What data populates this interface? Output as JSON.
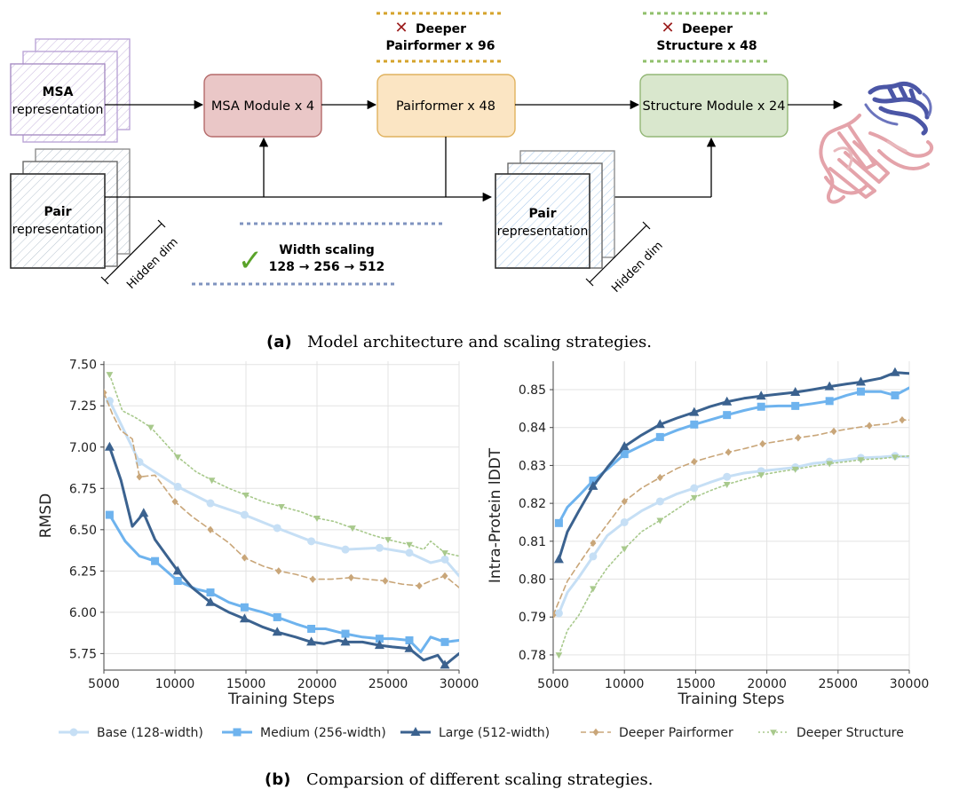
{
  "architecture": {
    "msa_repr": {
      "bold": "MSA",
      "label": "representation"
    },
    "pair_repr_left": {
      "bold": "Pair",
      "label": "representation"
    },
    "pair_repr_right": {
      "bold": "Pair",
      "label": "representation"
    },
    "hidden_dim_left": "Hidden dim",
    "hidden_dim_right": "Hidden dim",
    "msa_module": "MSA Module x 4",
    "pairformer": "Pairformer x 48",
    "structure_module": "Structure Module x 24",
    "deeper_pairformer": {
      "mark": "✕",
      "line1": "Deeper",
      "line2": "Pairformer x 96"
    },
    "deeper_structure": {
      "mark": "✕",
      "line1": "Deeper",
      "line2": "Structure x 48"
    },
    "width_scaling": {
      "mark": "✓",
      "line1": "Width scaling",
      "line2": "128 → 256 → 512"
    },
    "colors": {
      "msa_module_fill": "#eac7c7",
      "msa_module_stroke": "#b56a6a",
      "pairformer_fill": "#fbe5c3",
      "pairformer_stroke": "#e0b25e",
      "structure_fill": "#d9e7cd",
      "structure_stroke": "#93b776",
      "msa_repr_stroke": "#a58bc2",
      "pair_repr_stroke": "#333333"
    }
  },
  "caption_a": {
    "tag": "(a)",
    "text": "Model architecture and scaling strategies."
  },
  "caption_b": {
    "tag": "(b)",
    "text": "Comparsion of different scaling strategies."
  },
  "legend": [
    {
      "name": "Base (128-width)",
      "color": "#c6dff5",
      "marker": "circle",
      "dash": "solid"
    },
    {
      "name": "Medium (256-width)",
      "color": "#6eb3ee",
      "marker": "square",
      "dash": "solid"
    },
    {
      "name": "Large (512-width)",
      "color": "#3b628f",
      "marker": "triangle",
      "dash": "solid"
    },
    {
      "name": "Deeper Pairformer",
      "color": "#c9a679",
      "marker": "diamond",
      "dash": "dashed"
    },
    {
      "name": "Deeper Structure",
      "color": "#a8c98c",
      "marker": "tri-down",
      "dash": "dotted"
    }
  ],
  "chart_data": [
    {
      "type": "line",
      "title": "",
      "xlabel": "Training Steps",
      "ylabel": "RMSD",
      "xlim": [
        5000,
        30000
      ],
      "ylim": [
        5.65,
        7.52
      ],
      "xticks": [
        5000,
        10000,
        15000,
        20000,
        25000,
        30000
      ],
      "yticks": [
        5.75,
        6.0,
        6.25,
        6.5,
        6.75,
        7.0,
        7.25,
        7.5
      ],
      "ytick_labels": [
        "5.75",
        "6.00",
        "6.25",
        "6.50",
        "6.75",
        "7.00",
        "7.25",
        "7.50"
      ],
      "grid": true,
      "series": [
        {
          "name": "Base (128-width)",
          "x": [
            5400,
            7500,
            10200,
            12500,
            14900,
            17200,
            19600,
            22000,
            24400,
            26500,
            28000,
            29000,
            30000
          ],
          "y": [
            7.28,
            6.91,
            6.76,
            6.66,
            6.59,
            6.51,
            6.43,
            6.38,
            6.39,
            6.36,
            6.3,
            6.32,
            6.22
          ],
          "markers": [
            0,
            1,
            2,
            3,
            4,
            5,
            6,
            7,
            8,
            9,
            11
          ]
        },
        {
          "name": "Medium (256-width)",
          "x": [
            5400,
            6500,
            7500,
            8600,
            10200,
            11500,
            12500,
            13800,
            14900,
            16200,
            17200,
            18500,
            19600,
            20600,
            21500,
            22000,
            23200,
            24400,
            25300,
            26500,
            27300,
            28000,
            29000,
            30000
          ],
          "y": [
            6.59,
            6.43,
            6.34,
            6.31,
            6.19,
            6.14,
            6.12,
            6.06,
            6.03,
            6.0,
            5.97,
            5.93,
            5.9,
            5.9,
            5.88,
            5.87,
            5.85,
            5.84,
            5.84,
            5.83,
            5.76,
            5.85,
            5.82,
            5.83
          ],
          "markers": [
            0,
            3,
            4,
            6,
            8,
            10,
            12,
            15,
            17,
            19,
            22
          ]
        },
        {
          "name": "Large (512-width)",
          "x": [
            5400,
            6200,
            7000,
            7500,
            7800,
            8600,
            10200,
            11200,
            12500,
            13800,
            14900,
            16200,
            17200,
            18500,
            19600,
            20500,
            21500,
            22000,
            23200,
            24400,
            25300,
            26500,
            27500,
            28500,
            29000,
            30000
          ],
          "y": [
            7.0,
            6.8,
            6.52,
            6.57,
            6.6,
            6.44,
            6.25,
            6.15,
            6.06,
            6.0,
            5.96,
            5.91,
            5.88,
            5.85,
            5.82,
            5.81,
            5.83,
            5.82,
            5.82,
            5.8,
            5.79,
            5.78,
            5.71,
            5.74,
            5.68,
            5.75
          ],
          "markers": [
            0,
            4,
            6,
            8,
            10,
            12,
            14,
            17,
            19,
            21,
            24
          ]
        },
        {
          "name": "Deeper Pairformer",
          "x": [
            5000,
            5600,
            6200,
            7000,
            7500,
            8600,
            10000,
            11200,
            12500,
            13800,
            14900,
            16200,
            17300,
            18500,
            19700,
            21000,
            22400,
            23500,
            24800,
            26000,
            27200,
            28000,
            29000,
            30000
          ],
          "y": [
            7.33,
            7.2,
            7.1,
            7.05,
            6.82,
            6.83,
            6.67,
            6.58,
            6.5,
            6.42,
            6.33,
            6.28,
            6.25,
            6.23,
            6.2,
            6.2,
            6.21,
            6.2,
            6.19,
            6.17,
            6.16,
            6.19,
            6.22,
            6.15
          ],
          "markers": [
            0,
            4,
            6,
            8,
            10,
            12,
            14,
            16,
            18,
            20,
            22
          ]
        },
        {
          "name": "Deeper Structure",
          "x": [
            5400,
            6300,
            7200,
            8300,
            10200,
            11500,
            12600,
            13800,
            15000,
            16200,
            17500,
            18800,
            20000,
            21200,
            22500,
            23800,
            25000,
            26500,
            27500,
            28000,
            29000,
            30000
          ],
          "y": [
            7.44,
            7.22,
            7.18,
            7.12,
            6.94,
            6.85,
            6.8,
            6.75,
            6.71,
            6.67,
            6.64,
            6.61,
            6.57,
            6.55,
            6.51,
            6.47,
            6.44,
            6.41,
            6.38,
            6.43,
            6.36,
            6.34
          ],
          "markers": [
            0,
            3,
            4,
            6,
            8,
            10,
            12,
            14,
            16,
            17,
            20
          ]
        }
      ]
    },
    {
      "type": "line",
      "title": "",
      "xlabel": "Training Steps",
      "ylabel": "Intra-Protein lDDT",
      "xlim": [
        5000,
        30000
      ],
      "ylim": [
        0.776,
        0.8575
      ],
      "xticks": [
        5000,
        10000,
        15000,
        20000,
        25000,
        30000
      ],
      "yticks": [
        0.78,
        0.79,
        0.8,
        0.81,
        0.82,
        0.83,
        0.84,
        0.85
      ],
      "ytick_labels": [
        "0.78",
        "0.79",
        "0.80",
        "0.81",
        "0.82",
        "0.83",
        "0.84",
        "0.85"
      ],
      "grid": true,
      "series": [
        {
          "name": "Base (128-width)",
          "x": [
            5400,
            6000,
            6800,
            7800,
            8800,
            10000,
            11200,
            12500,
            13700,
            14900,
            16000,
            17200,
            18400,
            19600,
            20800,
            22000,
            23200,
            24400,
            25600,
            26600,
            28000,
            29000,
            30000
          ],
          "y": [
            0.791,
            0.7965,
            0.8005,
            0.806,
            0.8115,
            0.815,
            0.818,
            0.8205,
            0.8225,
            0.824,
            0.8255,
            0.827,
            0.828,
            0.8285,
            0.829,
            0.8295,
            0.8305,
            0.831,
            0.8315,
            0.832,
            0.8322,
            0.8325,
            0.8322
          ],
          "markers": [
            0,
            3,
            5,
            7,
            9,
            11,
            13,
            15,
            17,
            19,
            21
          ]
        },
        {
          "name": "Medium (256-width)",
          "x": [
            5400,
            6000,
            6800,
            7800,
            8800,
            10000,
            11200,
            12500,
            13700,
            14900,
            16000,
            17200,
            18400,
            19600,
            20800,
            22000,
            23200,
            24400,
            25600,
            26600,
            28000,
            29000,
            30000
          ],
          "y": [
            0.8148,
            0.819,
            0.822,
            0.826,
            0.829,
            0.833,
            0.8352,
            0.8375,
            0.8393,
            0.8408,
            0.842,
            0.8433,
            0.8445,
            0.8455,
            0.8457,
            0.8457,
            0.8463,
            0.847,
            0.8485,
            0.8495,
            0.8495,
            0.8485,
            0.8505
          ],
          "markers": [
            0,
            3,
            5,
            7,
            9,
            11,
            13,
            15,
            17,
            19,
            21
          ]
        },
        {
          "name": "Large (512-width)",
          "x": [
            5400,
            6000,
            6800,
            7800,
            8800,
            10000,
            11200,
            12500,
            13700,
            14900,
            16000,
            17200,
            18400,
            19600,
            20800,
            22000,
            23200,
            24400,
            25600,
            26600,
            28000,
            29000,
            30000
          ],
          "y": [
            0.8052,
            0.8125,
            0.818,
            0.8245,
            0.8295,
            0.835,
            0.838,
            0.8408,
            0.8425,
            0.844,
            0.8455,
            0.8468,
            0.8477,
            0.8483,
            0.8488,
            0.8493,
            0.85,
            0.8508,
            0.8515,
            0.852,
            0.853,
            0.8545,
            0.8543
          ],
          "markers": [
            0,
            3,
            5,
            7,
            9,
            11,
            13,
            15,
            17,
            19,
            21
          ]
        },
        {
          "name": "Deeper Pairformer",
          "x": [
            5000,
            6000,
            6800,
            7800,
            8800,
            10000,
            11200,
            12500,
            13700,
            14900,
            16000,
            17300,
            18500,
            19700,
            21000,
            22200,
            23500,
            24700,
            26000,
            27200,
            28500,
            29500,
            30000
          ],
          "y": [
            0.7905,
            0.7995,
            0.804,
            0.8095,
            0.8145,
            0.8205,
            0.824,
            0.8268,
            0.8292,
            0.831,
            0.8322,
            0.8335,
            0.8345,
            0.8357,
            0.8365,
            0.8373,
            0.838,
            0.839,
            0.8398,
            0.8405,
            0.841,
            0.842,
            0.842
          ],
          "markers": [
            0,
            3,
            5,
            7,
            9,
            11,
            13,
            15,
            17,
            19,
            21
          ]
        },
        {
          "name": "Deeper Structure",
          "x": [
            5400,
            6000,
            6800,
            7800,
            8800,
            10000,
            11200,
            12500,
            13700,
            14900,
            16000,
            17200,
            18400,
            19600,
            20800,
            22000,
            23200,
            24400,
            25600,
            26600,
            28000,
            29000,
            30000
          ],
          "y": [
            0.78,
            0.7865,
            0.7905,
            0.7975,
            0.803,
            0.808,
            0.8125,
            0.8155,
            0.8185,
            0.8215,
            0.8233,
            0.825,
            0.8263,
            0.8275,
            0.8283,
            0.829,
            0.8298,
            0.8305,
            0.831,
            0.8315,
            0.8318,
            0.8322,
            0.8325
          ],
          "markers": [
            0,
            3,
            5,
            7,
            9,
            11,
            13,
            15,
            17,
            19,
            21
          ]
        }
      ]
    }
  ]
}
